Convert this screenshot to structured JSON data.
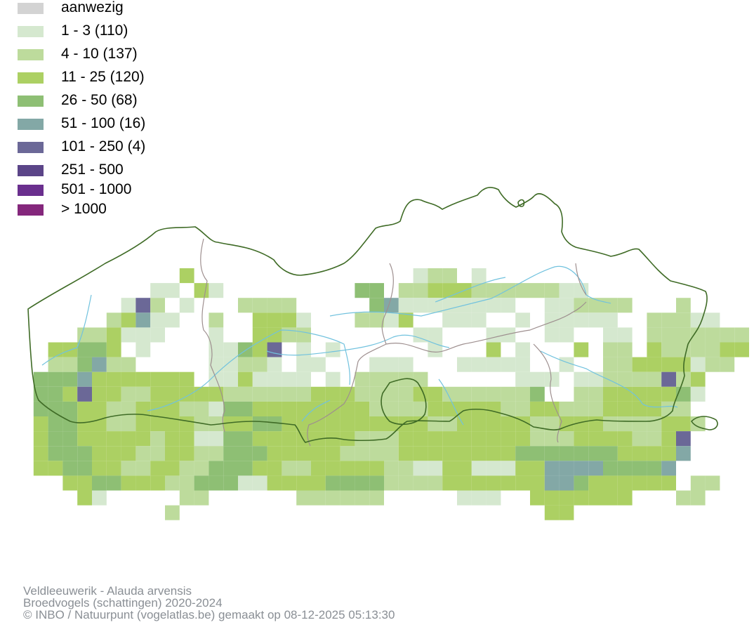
{
  "legend": {
    "items": [
      {
        "label": "aanwezig",
        "color": "#d3d3d3"
      },
      {
        "label": "1 - 3 (110)",
        "color": "#d5e8cf"
      },
      {
        "label": "4 - 10 (137)",
        "color": "#bddb9c"
      },
      {
        "label": "11 - 25 (120)",
        "color": "#acd063"
      },
      {
        "label": "26 - 50 (68)",
        "color": "#8ebf74"
      },
      {
        "label": "51 - 100 (16)",
        "color": "#83a8a6"
      },
      {
        "label": "101 - 250 (4)",
        "color": "#6b6897"
      },
      {
        "label": "251 - 500",
        "color": "#5b4588"
      },
      {
        "label": "501 - 1000",
        "color": "#6a2f8e"
      },
      {
        "label": "> 1000",
        "color": "#84277c"
      }
    ]
  },
  "map": {
    "border_color": "#3f6b26",
    "province_border_color": "#9e8f8f",
    "river_color": "#71c2de"
  },
  "footer": {
    "species": "Veldleeuwerik - Alauda arvensis",
    "dataset": "Broedvogels (schattingen) 2020-2024",
    "credit": "© INBO / Natuurpunt (vogelatlas.be) gemaakt op 08-12-2025 05:13:30"
  }
}
